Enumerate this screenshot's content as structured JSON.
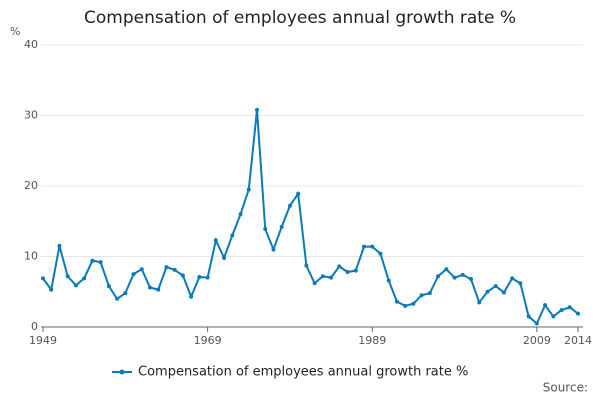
{
  "chart_data": {
    "type": "line",
    "title": "Compensation of employees annual growth rate %",
    "ylabel": "%",
    "source": "Source:",
    "x": [
      1949,
      1950,
      1951,
      1952,
      1953,
      1954,
      1955,
      1956,
      1957,
      1958,
      1959,
      1960,
      1961,
      1962,
      1963,
      1964,
      1965,
      1966,
      1967,
      1968,
      1969,
      1970,
      1971,
      1972,
      1973,
      1974,
      1975,
      1976,
      1977,
      1978,
      1979,
      1980,
      1981,
      1982,
      1983,
      1984,
      1985,
      1986,
      1987,
      1988,
      1989,
      1990,
      1991,
      1992,
      1993,
      1994,
      1995,
      1996,
      1997,
      1998,
      1999,
      2000,
      2001,
      2002,
      2003,
      2004,
      2005,
      2006,
      2007,
      2008,
      2009,
      2010,
      2011,
      2012,
      2013,
      2014
    ],
    "series": [
      {
        "name": "Compensation of employees annual growth rate %",
        "color": "#0b7ab8",
        "values": [
          6.9,
          5.3,
          11.5,
          7.2,
          5.9,
          6.9,
          9.4,
          9.2,
          5.8,
          4.0,
          4.8,
          7.5,
          8.2,
          5.6,
          5.3,
          8.5,
          8.1,
          7.3,
          4.3,
          7.1,
          7.0,
          12.3,
          9.8,
          13.0,
          16.0,
          19.5,
          30.8,
          13.9,
          11.0,
          14.2,
          17.2,
          18.9,
          8.7,
          6.2,
          7.2,
          7.0,
          8.6,
          7.8,
          8.0,
          11.4,
          11.4,
          10.4,
          6.6,
          3.6,
          3.0,
          3.3,
          4.5,
          4.8,
          7.2,
          8.2,
          7.0,
          7.4,
          6.8,
          3.5,
          5.0,
          5.8,
          4.9,
          6.9,
          6.2,
          1.5,
          0.5,
          3.1,
          1.5,
          2.4,
          2.8,
          1.9
        ]
      }
    ],
    "xlim": [
      1949,
      2014
    ],
    "xticks": [
      1949,
      1969,
      1989,
      2009,
      2014
    ],
    "ylim": [
      0,
      40
    ],
    "yticks": [
      0,
      10,
      20,
      30,
      40
    ],
    "grid": true
  }
}
